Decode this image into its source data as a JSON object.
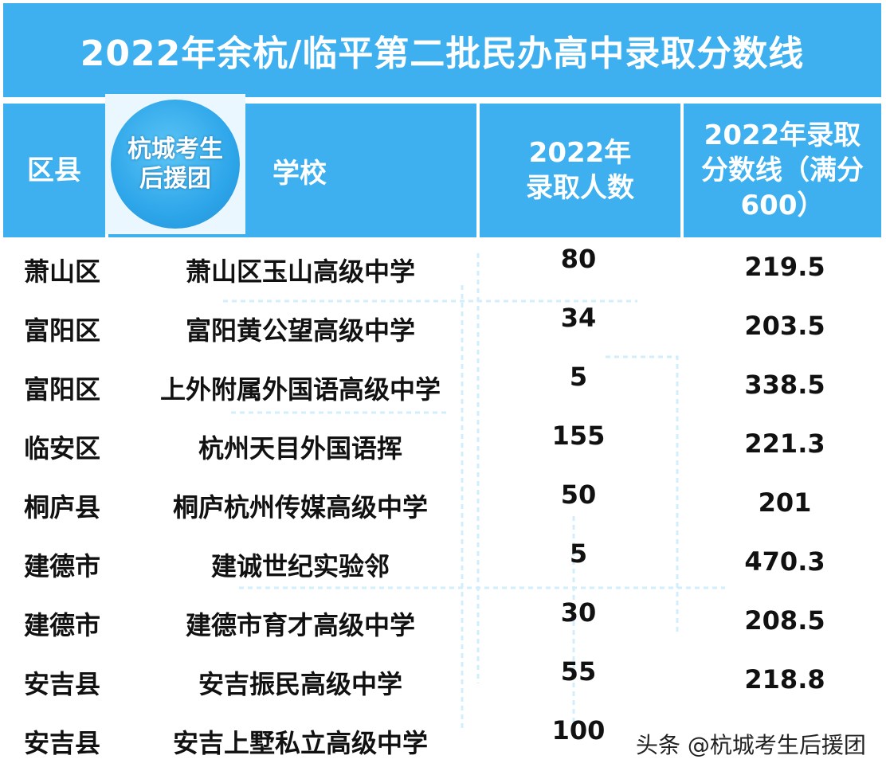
{
  "title": "2022年余杭/临平第二批民办高中录取分数线",
  "header": {
    "district": "区县",
    "school": "学校",
    "count_line1": "2022年",
    "count_line2": "录取人数",
    "score_line1": "2022年录取",
    "score_line2": "分数线（满分",
    "score_line3": "600）"
  },
  "logo": {
    "line1": "杭城考生",
    "line2": "后援团"
  },
  "rows": [
    {
      "district": "萧山区",
      "school": "萧山区玉山高级中学",
      "count": "80",
      "score": "219.5"
    },
    {
      "district": "富阳区",
      "school": "富阳黄公望高级中学",
      "count": "34",
      "score": "203.5"
    },
    {
      "district": "富阳区",
      "school": "上外附属外国语高级中学",
      "count": "5",
      "score": "338.5"
    },
    {
      "district": "临安区",
      "school": "杭州天目外国语挥",
      "count": "155",
      "score": "221.3"
    },
    {
      "district": "桐庐县",
      "school": "桐庐杭州传媒高级中学",
      "count": "50",
      "score": "201"
    },
    {
      "district": "建德市",
      "school": "建诚世纪实验邻",
      "count": "5",
      "score": "470.3"
    },
    {
      "district": "建德市",
      "school": "建德市育才高级中学",
      "count": "30",
      "score": "208.5"
    },
    {
      "district": "安吉县",
      "school": "安吉振民高级中学",
      "count": "55",
      "score": "218.8"
    },
    {
      "district": "安吉县",
      "school": "安吉上墅私立高级中学",
      "count": "100",
      "score": ""
    }
  ],
  "source_watermark": "头条 @杭城考生后援团",
  "colors": {
    "header_blue": "#3fb0ef",
    "text": "#111111"
  }
}
